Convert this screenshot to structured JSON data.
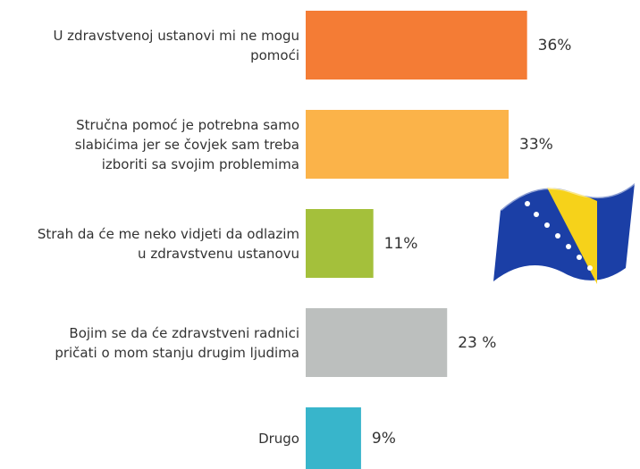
{
  "chart_data": {
    "type": "hbar",
    "categories": [
      "U zdravstvenoj ustanovi mi ne mogu\npomoći",
      "Stručna pomoć je potrebna samo\nslabićima jer se čovjek sam treba\nizboriti sa svojim problemima",
      "Strah da će  me neko vidjeti da odlazim\nu zdravstvenu ustanovu",
      "Bojim se da će zdravstveni radnici\npričati o mom stanju drugim ljudima",
      "Drugo"
    ],
    "values": [
      36,
      33,
      11,
      23,
      9
    ],
    "value_labels": [
      "36%",
      "33%",
      "11%",
      "23 %",
      "9%"
    ],
    "colors": [
      "#f47c35",
      "#fbb349",
      "#a4c03b",
      "#bcbfbe",
      "#38b5cb"
    ]
  }
}
